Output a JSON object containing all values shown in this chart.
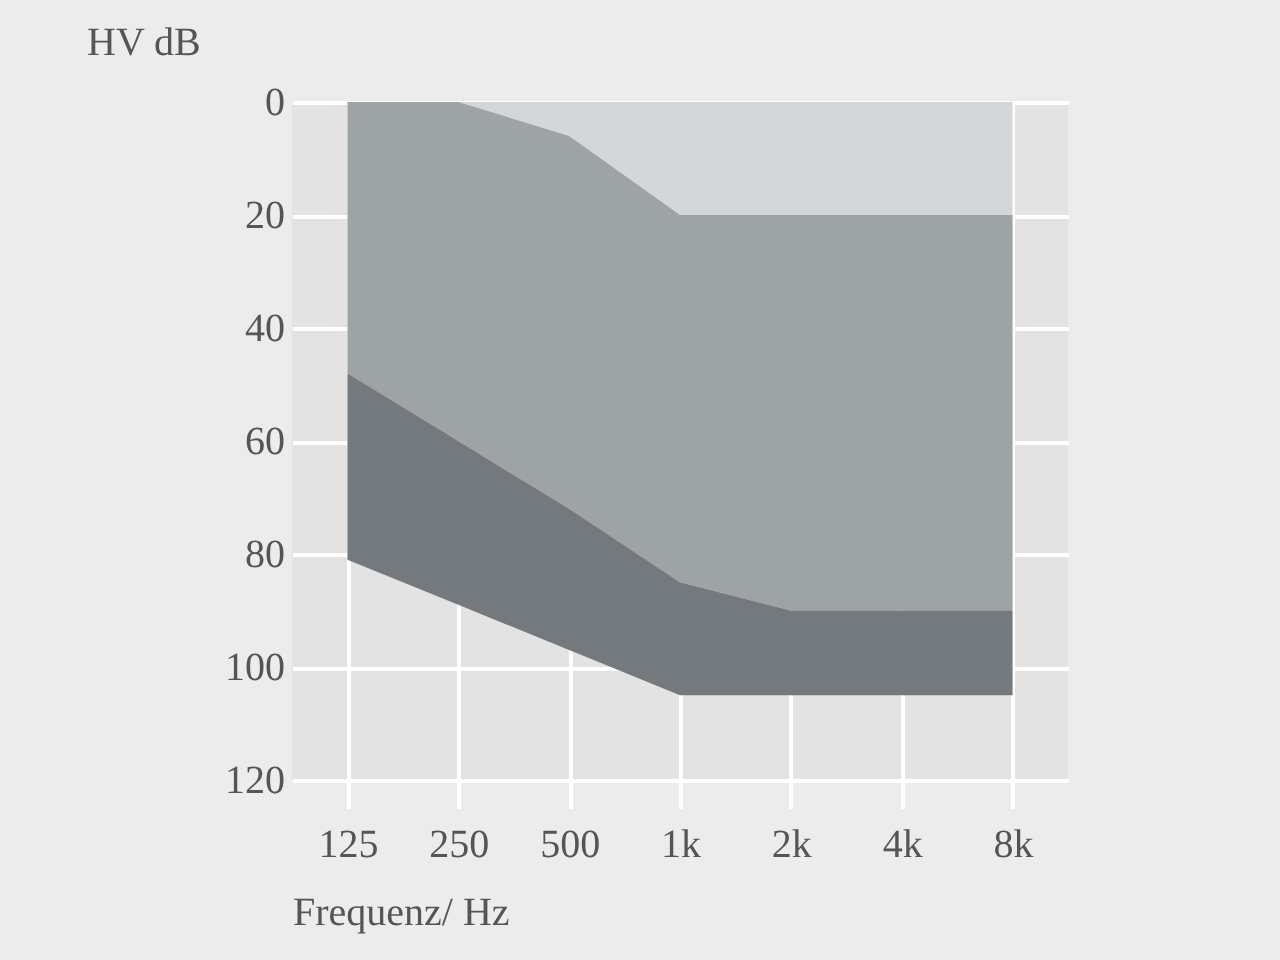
{
  "chart_data": {
    "type": "area",
    "stacked": true,
    "categories": [
      "125",
      "250",
      "500",
      "1k",
      "2k",
      "4k",
      "8k"
    ],
    "series": [
      {
        "color": "#d4d7d9",
        "values": [
          0,
          0,
          6,
          20,
          20,
          20,
          20
        ]
      },
      {
        "color": "#9ea3a6",
        "values": [
          48,
          60,
          66,
          65,
          70,
          70,
          70
        ]
      },
      {
        "color": "#73797d",
        "values": [
          33,
          29,
          25,
          20,
          15,
          15,
          15
        ]
      }
    ],
    "xlabel": "Frequenz/ Hz",
    "ylabel": "HV dB",
    "ylim": [
      120,
      0
    ],
    "yticks": [
      0,
      20,
      40,
      60,
      80,
      100,
      120
    ],
    "grid": true,
    "legend": false
  }
}
